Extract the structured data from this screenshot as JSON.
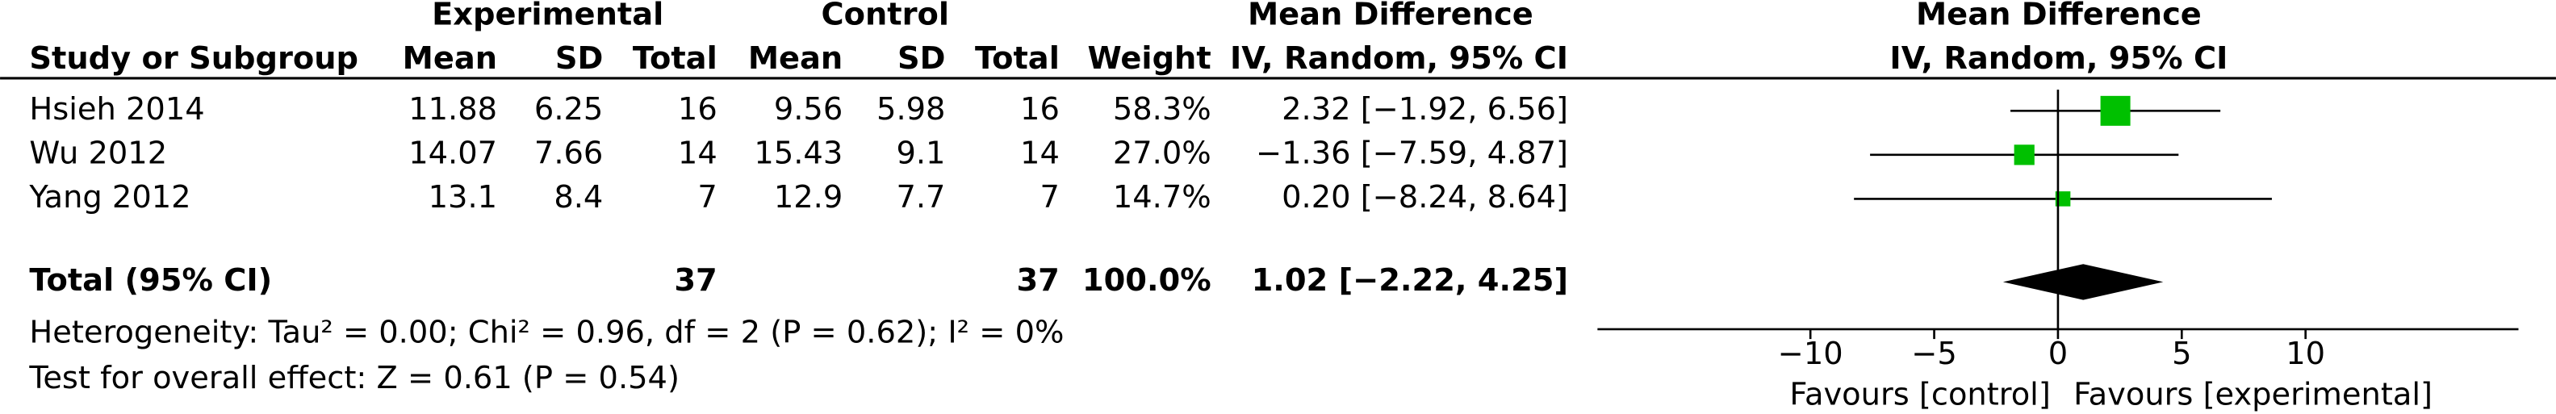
{
  "chart_data": {
    "type": "forest",
    "group_headers": {
      "experimental": "Experimental",
      "control": "Control",
      "table_effect": "Mean Difference",
      "plot_effect": "Mean Difference"
    },
    "columns": [
      "Study or Subgroup",
      "Mean",
      "SD",
      "Total",
      "Mean",
      "SD",
      "Total",
      "Weight",
      "IV, Random, 95% CI"
    ],
    "plot_subheader": "IV, Random, 95% CI",
    "studies": [
      {
        "name": "Hsieh 2014",
        "exp_mean": 11.88,
        "exp_sd": 6.25,
        "exp_total": 16,
        "ctl_mean": 9.56,
        "ctl_sd": 5.98,
        "ctl_total": 16,
        "weight": 58.3,
        "weight_label": "58.3%",
        "md": 2.32,
        "ci_low": -1.92,
        "ci_high": 6.56,
        "ci_label": "2.32 [−1.92, 6.56]"
      },
      {
        "name": "Wu 2012",
        "exp_mean": 14.07,
        "exp_sd": 7.66,
        "exp_total": 14,
        "ctl_mean": 15.43,
        "ctl_sd": 9.1,
        "ctl_total": 14,
        "weight": 27.0,
        "weight_label": "27.0%",
        "md": -1.36,
        "ci_low": -7.59,
        "ci_high": 4.87,
        "ci_label": "−1.36 [−7.59, 4.87]"
      },
      {
        "name": "Yang 2012",
        "exp_mean": 13.1,
        "exp_sd": 8.4,
        "exp_total": 7,
        "ctl_mean": 12.9,
        "ctl_sd": 7.7,
        "ctl_total": 7,
        "weight": 14.7,
        "weight_label": "14.7%",
        "md": 0.2,
        "ci_low": -8.24,
        "ci_high": 8.64,
        "ci_label": "0.20 [−8.24, 8.64]"
      }
    ],
    "total": {
      "name": "Total (95% CI)",
      "exp_total": 37,
      "ctl_total": 37,
      "weight": 100.0,
      "weight_label": "100.0%",
      "md": 1.02,
      "ci_low": -2.22,
      "ci_high": 4.25,
      "ci_label": "1.02 [−2.22, 4.25]"
    },
    "heterogeneity": "Heterogeneity: Tau² = 0.00; Chi² = 0.96, df = 2 (P = 0.62); I² = 0%",
    "overall_effect": "Test for overall effect: Z = 0.61 (P = 0.54)",
    "xlim": [
      -18.6,
      18.6
    ],
    "xticks": [
      {
        "value": -10,
        "label": "−10"
      },
      {
        "value": -5,
        "label": "−5"
      },
      0,
      5,
      10
    ],
    "x_labels": {
      "left": "Favours [control]",
      "right": "Favours [experimental]"
    },
    "color": "#00c000",
    "diamond_color": "#000000"
  }
}
